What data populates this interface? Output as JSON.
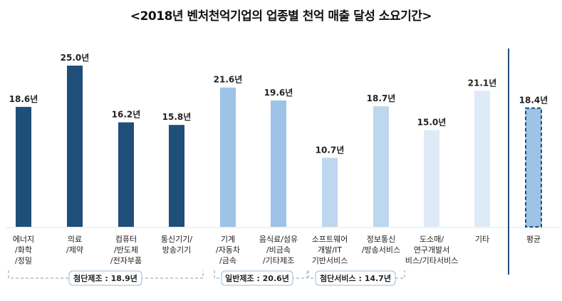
{
  "chart_data": {
    "type": "bar",
    "title": "<2018년 벤처천억기업의 업종별 천억 매출 달성 소요기간>",
    "unit": "년",
    "ylim": [
      0,
      25
    ],
    "categories": [
      [
        "에너지",
        "/화학",
        "/정밀"
      ],
      [
        "의료",
        "/제약"
      ],
      [
        "컴퓨터",
        "/반도체",
        "/전자부품"
      ],
      [
        "통신기기/",
        "방송기기"
      ],
      [
        "기계",
        "/자동차",
        "/금속"
      ],
      [
        "음식료/섬유",
        "/비금속",
        "/기타제조"
      ],
      [
        "소프트웨어",
        "개발/IT",
        "기반서비스"
      ],
      [
        "정보통신",
        "/방송서비스"
      ],
      [
        "도소매/",
        "연구개발서",
        "비스/기타서비스"
      ],
      [
        "기타"
      ],
      [
        "평균"
      ]
    ],
    "values": [
      18.6,
      25.0,
      16.2,
      15.8,
      21.6,
      19.6,
      10.7,
      18.7,
      15.0,
      21.1,
      18.4
    ],
    "value_labels": [
      "18.6년",
      "25.0년",
      "16.2년",
      "15.8년",
      "21.6년",
      "19.6년",
      "10.7년",
      "18.7년",
      "15.0년",
      "21.1년",
      "18.4년"
    ],
    "colors": [
      "#1f4e79",
      "#1f4e79",
      "#1f4e79",
      "#1f4e79",
      "#9dc3e6",
      "#9dc3e6",
      "#bdd7ee",
      "#bdd7ee",
      "#deebf7",
      "#deebf7",
      "#9dc3e6"
    ],
    "groups": [
      {
        "label": "첨단제조 : 18.9년",
        "from": 0,
        "to": 3
      },
      {
        "label": "일반제조 : 20.6년",
        "from": 4,
        "to": 5
      },
      {
        "label": "첨단서비스 : 14.7년",
        "from": 6,
        "to": 7
      }
    ]
  }
}
